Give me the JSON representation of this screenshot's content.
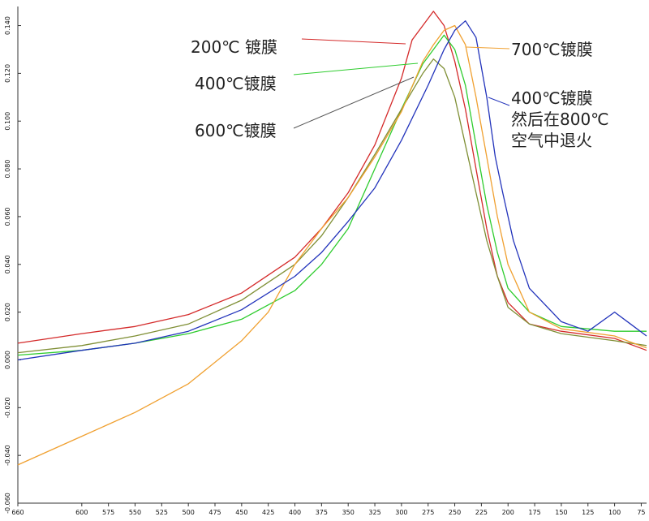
{
  "chart_data": {
    "type": "line",
    "title": "",
    "xlabel": "",
    "ylabel": "",
    "xlim": [
      660,
      70
    ],
    "ylim": [
      -0.06,
      0.148
    ],
    "grid": false,
    "legend": "none",
    "x_ticks": [
      660,
      600,
      575,
      550,
      525,
      500,
      475,
      450,
      425,
      400,
      375,
      350,
      325,
      300,
      275,
      250,
      225,
      200,
      175,
      150,
      125,
      100,
      75
    ],
    "y_ticks": [
      0.14,
      0.12,
      0.1,
      0.08,
      0.06,
      0.04,
      0.02,
      0.0,
      -0.02,
      -0.04,
      -0.06
    ],
    "y_tick_labels": [
      "0.140",
      "0.120",
      "0.100",
      "0.080",
      "0.060",
      "0.040",
      "0.020",
      "0.000",
      "-0.020",
      "-0.040",
      "-0.060"
    ],
    "series": [
      {
        "label": "200℃  镀膜",
        "color": "#d42a2a",
        "points": [
          [
            660,
            0.007
          ],
          [
            600,
            0.011
          ],
          [
            550,
            0.014
          ],
          [
            500,
            0.019
          ],
          [
            450,
            0.028
          ],
          [
            400,
            0.043
          ],
          [
            375,
            0.055
          ],
          [
            350,
            0.07
          ],
          [
            325,
            0.09
          ],
          [
            300,
            0.118
          ],
          [
            290,
            0.134
          ],
          [
            280,
            0.14
          ],
          [
            270,
            0.146
          ],
          [
            260,
            0.14
          ],
          [
            250,
            0.125
          ],
          [
            240,
            0.105
          ],
          [
            230,
            0.08
          ],
          [
            220,
            0.055
          ],
          [
            210,
            0.035
          ],
          [
            200,
            0.024
          ],
          [
            180,
            0.015
          ],
          [
            150,
            0.012
          ],
          [
            100,
            0.009
          ],
          [
            70,
            0.004
          ]
        ]
      },
      {
        "label": "400℃镀膜",
        "color": "#2ecc2e",
        "points": [
          [
            660,
            0.002
          ],
          [
            600,
            0.004
          ],
          [
            550,
            0.007
          ],
          [
            500,
            0.011
          ],
          [
            450,
            0.017
          ],
          [
            400,
            0.029
          ],
          [
            375,
            0.04
          ],
          [
            350,
            0.055
          ],
          [
            325,
            0.08
          ],
          [
            300,
            0.105
          ],
          [
            280,
            0.124
          ],
          [
            270,
            0.13
          ],
          [
            260,
            0.136
          ],
          [
            250,
            0.13
          ],
          [
            240,
            0.115
          ],
          [
            230,
            0.09
          ],
          [
            220,
            0.065
          ],
          [
            210,
            0.045
          ],
          [
            200,
            0.03
          ],
          [
            180,
            0.02
          ],
          [
            150,
            0.014
          ],
          [
            100,
            0.012
          ],
          [
            70,
            0.012
          ]
        ]
      },
      {
        "label": "600℃镀膜",
        "color": "#7f8f35",
        "points": [
          [
            660,
            0.003
          ],
          [
            600,
            0.006
          ],
          [
            550,
            0.01
          ],
          [
            500,
            0.015
          ],
          [
            450,
            0.025
          ],
          [
            400,
            0.04
          ],
          [
            375,
            0.052
          ],
          [
            350,
            0.068
          ],
          [
            325,
            0.086
          ],
          [
            300,
            0.105
          ],
          [
            280,
            0.12
          ],
          [
            270,
            0.126
          ],
          [
            260,
            0.122
          ],
          [
            250,
            0.11
          ],
          [
            240,
            0.09
          ],
          [
            230,
            0.07
          ],
          [
            220,
            0.05
          ],
          [
            210,
            0.035
          ],
          [
            200,
            0.022
          ],
          [
            180,
            0.015
          ],
          [
            150,
            0.011
          ],
          [
            100,
            0.008
          ],
          [
            70,
            0.006
          ]
        ]
      },
      {
        "label": "700℃镀膜",
        "color": "#f0a030",
        "points": [
          [
            660,
            -0.044
          ],
          [
            600,
            -0.032
          ],
          [
            550,
            -0.022
          ],
          [
            500,
            -0.01
          ],
          [
            450,
            0.008
          ],
          [
            425,
            0.02
          ],
          [
            400,
            0.04
          ],
          [
            375,
            0.055
          ],
          [
            350,
            0.068
          ],
          [
            325,
            0.085
          ],
          [
            300,
            0.104
          ],
          [
            280,
            0.125
          ],
          [
            270,
            0.132
          ],
          [
            260,
            0.138
          ],
          [
            250,
            0.14
          ],
          [
            240,
            0.132
          ],
          [
            230,
            0.11
          ],
          [
            220,
            0.085
          ],
          [
            210,
            0.06
          ],
          [
            200,
            0.04
          ],
          [
            180,
            0.02
          ],
          [
            150,
            0.013
          ],
          [
            100,
            0.01
          ],
          [
            70,
            0.005
          ]
        ]
      },
      {
        "label": "400℃镀膜\n然后在800℃\n空气中退火",
        "color": "#2233bb",
        "points": [
          [
            660,
            0.0
          ],
          [
            600,
            0.004
          ],
          [
            550,
            0.007
          ],
          [
            500,
            0.012
          ],
          [
            450,
            0.021
          ],
          [
            400,
            0.035
          ],
          [
            375,
            0.045
          ],
          [
            350,
            0.058
          ],
          [
            325,
            0.072
          ],
          [
            300,
            0.092
          ],
          [
            275,
            0.115
          ],
          [
            260,
            0.13
          ],
          [
            250,
            0.138
          ],
          [
            240,
            0.142
          ],
          [
            230,
            0.135
          ],
          [
            220,
            0.11
          ],
          [
            212,
            0.085
          ],
          [
            205,
            0.07
          ],
          [
            195,
            0.05
          ],
          [
            180,
            0.03
          ],
          [
            150,
            0.016
          ],
          [
            125,
            0.012
          ],
          [
            100,
            0.02
          ],
          [
            85,
            0.015
          ],
          [
            70,
            0.01
          ]
        ]
      }
    ]
  },
  "annotations": {
    "label_200": "200℃  镀膜",
    "label_400": "400℃镀膜",
    "label_600": "600℃镀膜",
    "label_700": "700℃镀膜",
    "label_anneal_1": "400℃镀膜",
    "label_anneal_2": "然后在800℃",
    "label_anneal_3": "空气中退火"
  }
}
